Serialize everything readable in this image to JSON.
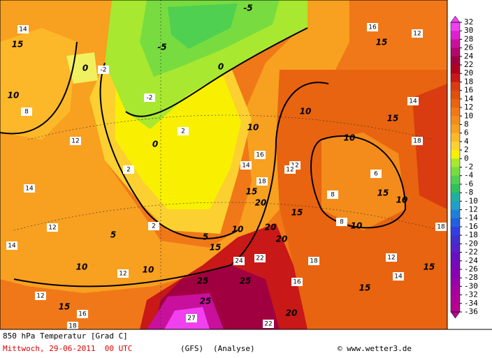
{
  "map": {
    "legend": {
      "ticks": [
        32,
        30,
        28,
        26,
        24,
        22,
        20,
        18,
        16,
        14,
        12,
        10,
        8,
        6,
        4,
        2,
        0,
        -2,
        -4,
        -6,
        -8,
        -10,
        -12,
        -14,
        -16,
        -18,
        -20,
        -22,
        -24,
        -26,
        -28,
        -30,
        -32,
        -34,
        -36
      ],
      "colors": [
        "#f040f0",
        "#e020d0",
        "#c8109c",
        "#b0086c",
        "#a00040",
        "#b00020",
        "#c81818",
        "#d83c10",
        "#e05010",
        "#e86410",
        "#f07818",
        "#f48c1c",
        "#f8a020",
        "#fcb828",
        "#fcd030",
        "#f8f000",
        "#a8e830",
        "#78dc40",
        "#50d050",
        "#30c060",
        "#20b0a0",
        "#20a0c8",
        "#2080d8",
        "#2060e0",
        "#3040e0",
        "#4030d0",
        "#5820c8",
        "#6810c0",
        "#7808b8",
        "#8800b0",
        "#9800a8",
        "#a800a0",
        "#b00098",
        "#b80090"
      ]
    },
    "isotherm_labels": [
      14,
      15,
      10,
      8,
      12,
      14,
      12,
      14,
      10,
      12,
      15,
      18,
      16,
      0,
      -2,
      -5,
      -5,
      0,
      -2,
      2,
      2,
      0,
      2,
      5,
      10,
      12,
      5,
      15,
      10,
      10,
      12,
      15,
      20,
      20,
      20,
      10,
      22,
      24,
      25,
      25,
      25,
      27,
      22,
      20,
      15,
      10,
      10,
      15,
      10,
      15,
      15,
      16,
      12,
      14,
      18,
      18,
      12,
      15,
      14,
      8,
      8,
      6,
      16,
      18,
      15,
      16,
      14,
      18,
      12
    ]
  },
  "footer": {
    "title": "850 hPa Temperatur [Grad C]",
    "date": "Mittwoch, 29-06-2011  00 UTC",
    "model": "(GFS)",
    "run": "(Analyse)",
    "copyright": "© www.wetter3.de"
  }
}
